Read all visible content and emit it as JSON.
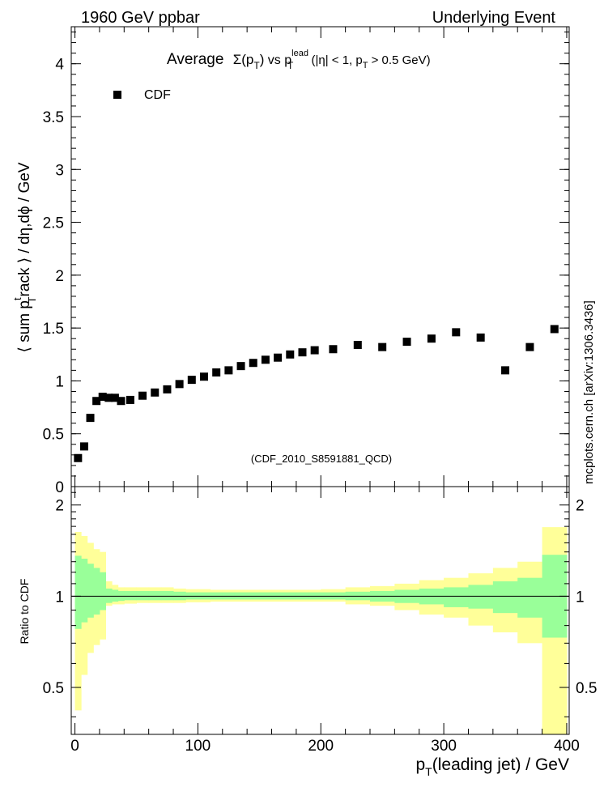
{
  "header": {
    "left": "1960 GeV ppbar",
    "right": "Underlying Event"
  },
  "watermark": {
    "site": "mcplots.cern.ch",
    "ref": "[arXiv:1306.3436]"
  },
  "plot_title": {
    "prefix": "Average",
    "sigma": "Σ(p",
    "sigma_sub": "T",
    "sigma_close": ")",
    "vs": " vs p",
    "vs_sup": "lead",
    "vs_sub": "T",
    "cuts": " (|η| < 1, p",
    "cuts_sub": "T",
    "cuts_tail": " > 0.5 GeV)"
  },
  "analysis_id": "(CDF_2010_S8591881_QCD)",
  "colors": {
    "data": "#000000",
    "band_inner": "#99ff99",
    "band_outer": "#ffff99",
    "watermark": "#808080",
    "analysis_id": "#999999"
  },
  "chart_data": [
    {
      "type": "scatter",
      "panel": "main",
      "ylabel_parts": {
        "a": "⟨ sum p",
        "sup": "t",
        "sub": "T",
        "b": "rack ⟩ / dη,dϕ / GeV"
      },
      "xlim": [
        -3,
        402
      ],
      "ylim": [
        0,
        4.35
      ],
      "yticks": [
        0,
        0.5,
        1,
        1.5,
        2,
        2.5,
        3,
        3.5,
        4
      ],
      "ytick_labels": [
        "0",
        "0.5",
        "1",
        "1.5",
        "2",
        "2.5",
        "3",
        "3.5",
        "4"
      ],
      "legend": {
        "position": "top-left",
        "entries": [
          "CDF"
        ]
      },
      "series": [
        {
          "name": "CDF",
          "marker": "square",
          "x": [
            2.5,
            7.5,
            12.5,
            17.5,
            22.5,
            27.5,
            32.5,
            37.5,
            45,
            55,
            65,
            75,
            85,
            95,
            105,
            115,
            125,
            135,
            145,
            155,
            165,
            175,
            185,
            195,
            210,
            230,
            250,
            270,
            290,
            310,
            330,
            350,
            370,
            390
          ],
          "y": [
            0.27,
            0.38,
            0.65,
            0.81,
            0.85,
            0.84,
            0.84,
            0.81,
            0.82,
            0.86,
            0.89,
            0.92,
            0.97,
            1.01,
            1.04,
            1.08,
            1.1,
            1.14,
            1.17,
            1.2,
            1.22,
            1.25,
            1.27,
            1.29,
            1.3,
            1.34,
            1.32,
            1.37,
            1.4,
            1.46,
            1.41,
            1.1,
            1.32,
            1.49
          ]
        }
      ]
    },
    {
      "type": "area",
      "panel": "ratio",
      "ylabel": "Ratio to CDF",
      "xlabel_parts": {
        "a": "p",
        "sub": "T",
        "b": "(leading jet) / GeV"
      },
      "xlim": [
        -3,
        402
      ],
      "ylim": [
        0.35,
        2.3
      ],
      "xticks": [
        0,
        100,
        200,
        300,
        400
      ],
      "xtick_labels": [
        "0",
        "100",
        "200",
        "300",
        "400"
      ],
      "yticks": [
        0.5,
        1,
        2
      ],
      "ytick_labels": [
        "0.5",
        "1",
        "2"
      ],
      "reference_line": 1,
      "bins": {
        "edges": [
          0,
          5,
          10,
          15,
          20,
          25,
          30,
          35,
          40,
          50,
          60,
          70,
          80,
          90,
          100,
          110,
          120,
          130,
          140,
          150,
          160,
          170,
          180,
          190,
          200,
          220,
          240,
          260,
          280,
          300,
          320,
          340,
          360,
          380,
          400
        ],
        "inner_up": [
          1.36,
          1.33,
          1.28,
          1.24,
          1.2,
          1.06,
          1.05,
          1.04,
          1.04,
          1.04,
          1.04,
          1.04,
          1.035,
          1.03,
          1.03,
          1.03,
          1.03,
          1.03,
          1.03,
          1.03,
          1.03,
          1.03,
          1.03,
          1.03,
          1.03,
          1.035,
          1.04,
          1.05,
          1.06,
          1.07,
          1.09,
          1.12,
          1.15,
          1.37
        ],
        "inner_down": [
          0.78,
          0.82,
          0.85,
          0.87,
          0.9,
          0.95,
          0.96,
          0.965,
          0.97,
          0.97,
          0.97,
          0.97,
          0.97,
          0.975,
          0.975,
          0.975,
          0.975,
          0.975,
          0.975,
          0.975,
          0.975,
          0.975,
          0.975,
          0.975,
          0.975,
          0.97,
          0.96,
          0.95,
          0.94,
          0.92,
          0.91,
          0.88,
          0.85,
          0.73
        ],
        "outer_up": [
          1.63,
          1.58,
          1.5,
          1.43,
          1.4,
          1.12,
          1.09,
          1.07,
          1.07,
          1.07,
          1.07,
          1.07,
          1.06,
          1.055,
          1.055,
          1.05,
          1.05,
          1.05,
          1.05,
          1.05,
          1.05,
          1.05,
          1.05,
          1.05,
          1.055,
          1.07,
          1.08,
          1.1,
          1.13,
          1.15,
          1.19,
          1.24,
          1.3,
          1.69
        ],
        "outer_down": [
          0.42,
          0.55,
          0.65,
          0.69,
          0.72,
          0.93,
          0.94,
          0.94,
          0.945,
          0.95,
          0.95,
          0.95,
          0.95,
          0.955,
          0.955,
          0.96,
          0.96,
          0.96,
          0.96,
          0.96,
          0.96,
          0.96,
          0.96,
          0.96,
          0.96,
          0.94,
          0.93,
          0.9,
          0.87,
          0.85,
          0.8,
          0.76,
          0.7,
          0.35
        ]
      }
    }
  ]
}
